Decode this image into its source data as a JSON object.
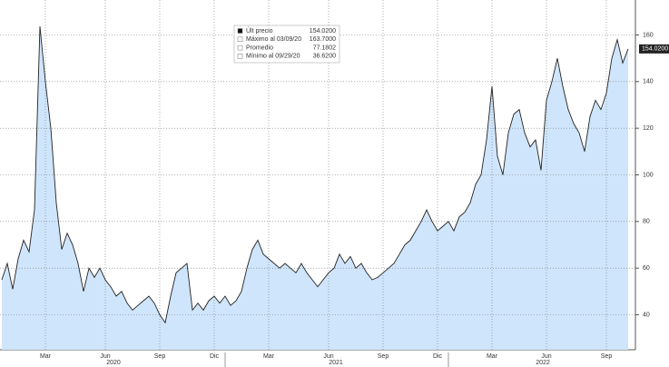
{
  "chart_data": {
    "type": "area",
    "categories": [
      null,
      null,
      null,
      null,
      null,
      null,
      null,
      null,
      "Mar",
      null,
      null,
      null,
      null,
      null,
      null,
      null,
      null,
      null,
      null,
      "Jun",
      null,
      null,
      null,
      null,
      null,
      null,
      null,
      null,
      null,
      "Sep",
      null,
      null,
      null,
      null,
      null,
      null,
      null,
      null,
      null,
      "Dic",
      null,
      null,
      null,
      null,
      null,
      null,
      null,
      null,
      null,
      "Mar",
      null,
      null,
      null,
      null,
      null,
      null,
      null,
      null,
      null,
      null,
      "Jun",
      null,
      null,
      null,
      null,
      null,
      null,
      null,
      null,
      null,
      "Sep",
      null,
      null,
      null,
      null,
      null,
      null,
      null,
      null,
      null,
      "Dic",
      null,
      null,
      null,
      null,
      null,
      null,
      null,
      null,
      null,
      "Mar",
      null,
      null,
      null,
      null,
      null,
      null,
      null,
      null,
      null,
      "Jun",
      null,
      null,
      null,
      null,
      null,
      null,
      null,
      null,
      null,
      null,
      "Sep",
      null,
      null,
      null,
      null
    ],
    "values": [
      55,
      62,
      51,
      64,
      72,
      67,
      85,
      163.7,
      140,
      120,
      88,
      68,
      75,
      70,
      62,
      50,
      60,
      56,
      60,
      55,
      52,
      48,
      50,
      45,
      42,
      44,
      46,
      48,
      45,
      40,
      36.62,
      48,
      58,
      60,
      62,
      42,
      45,
      42,
      46,
      48,
      45,
      48,
      44,
      46,
      50,
      60,
      68,
      72,
      66,
      64,
      62,
      60,
      62,
      60,
      58,
      62,
      58,
      55,
      52,
      55,
      58,
      60,
      66,
      62,
      65,
      60,
      62,
      58,
      55,
      56,
      58,
      60,
      62,
      66,
      70,
      72,
      76,
      80,
      85,
      80,
      76,
      78,
      80,
      76,
      82,
      84,
      88,
      96,
      100,
      115,
      138,
      108,
      100,
      118,
      126,
      128,
      118,
      112,
      115,
      102,
      132,
      140,
      150,
      138,
      128,
      122,
      118,
      110,
      125,
      132,
      128,
      135,
      150,
      158,
      148,
      154.02
    ],
    "value_labels_last": "154.0200",
    "color": "#222222",
    "fill": "#cfe5fb",
    "years": [
      "2020",
      "2021",
      "2022"
    ],
    "ylim": [
      25,
      175
    ],
    "yticks": [
      40,
      60,
      80,
      100,
      120,
      140,
      160
    ],
    "grid": true,
    "legend": [
      {
        "label": "Últ precio",
        "value": "154.0200"
      },
      {
        "label": "Máximo al 03/09/20",
        "value": "163.7000"
      },
      {
        "label": "Promedio",
        "value": "77.1802"
      },
      {
        "label": "Mínimo al 09/29/20",
        "value": "36.6200"
      }
    ]
  }
}
